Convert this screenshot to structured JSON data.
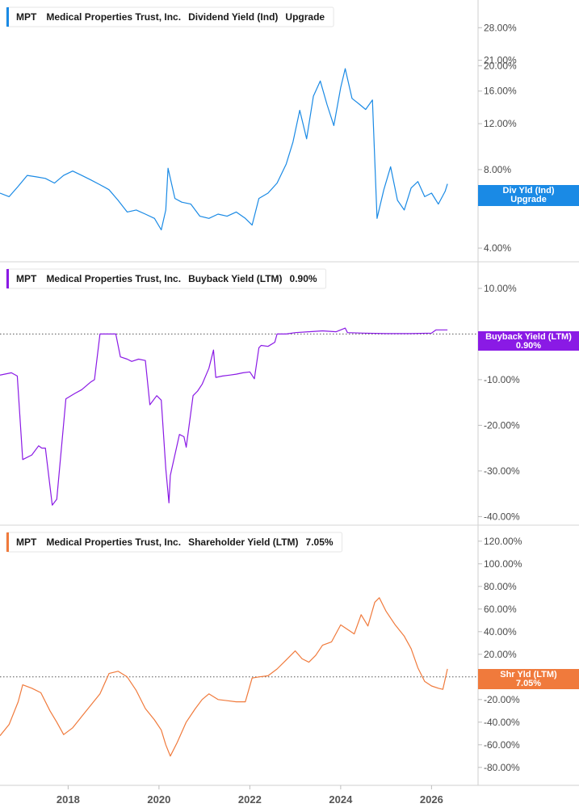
{
  "chart_data": [
    {
      "type": "line",
      "ticker": "MPT",
      "company": "Medical Properties Trust, Inc.",
      "metric": "Dividend Yield (Ind)",
      "metric_value": "Upgrade",
      "tag_label": "Div Yld (Ind)",
      "tag_value": "Upgrade",
      "color": "#1a8ae5",
      "scale": "log",
      "ylim": [
        3.7,
        31
      ],
      "y_ticks": [
        "28.00%",
        "21.00%",
        "20.00%",
        "16.00%",
        "12.00%",
        "8.00%",
        "6.00%",
        "4.00%"
      ],
      "y_tick_values": [
        28,
        21,
        20,
        16,
        12,
        8,
        6,
        4
      ],
      "current_value": 7.05,
      "x": [
        2016.5,
        2016.7,
        2016.9,
        2017.1,
        2017.3,
        2017.5,
        2017.7,
        2017.9,
        2018.1,
        2018.3,
        2018.5,
        2018.7,
        2018.9,
        2019.1,
        2019.3,
        2019.5,
        2019.7,
        2019.9,
        2020.05,
        2020.15,
        2020.2,
        2020.35,
        2020.5,
        2020.7,
        2020.9,
        2021.1,
        2021.3,
        2021.5,
        2021.7,
        2021.9,
        2022.05,
        2022.2,
        2022.4,
        2022.6,
        2022.8,
        2022.95,
        2023.1,
        2023.25,
        2023.4,
        2023.55,
        2023.7,
        2023.85,
        2024.0,
        2024.1,
        2024.25,
        2024.4,
        2024.55,
        2024.7,
        2024.8,
        2024.95,
        2025.1,
        2025.25,
        2025.4,
        2025.55,
        2025.7,
        2025.85,
        2026.0,
        2026.15,
        2026.3,
        2026.35
      ],
      "values": [
        6.5,
        6.3,
        6.9,
        7.6,
        7.5,
        7.4,
        7.1,
        7.6,
        7.9,
        7.6,
        7.3,
        7.0,
        6.7,
        6.1,
        5.5,
        5.6,
        5.4,
        5.2,
        4.7,
        5.6,
        8.1,
        6.2,
        6.0,
        5.9,
        5.3,
        5.2,
        5.4,
        5.3,
        5.5,
        5.2,
        4.9,
        6.2,
        6.5,
        7.1,
        8.4,
        10.2,
        13.5,
        10.5,
        15.3,
        17.5,
        14.2,
        11.8,
        16.5,
        19.5,
        15.0,
        14.3,
        13.6,
        14.8,
        5.2,
        6.7,
        8.2,
        6.1,
        5.6,
        6.8,
        7.2,
        6.3,
        6.5,
        5.9,
        6.6,
        7.05
      ]
    },
    {
      "type": "line",
      "ticker": "MPT",
      "company": "Medical Properties Trust, Inc.",
      "metric": "Buyback Yield (LTM)",
      "metric_value": "0.90%",
      "tag_label": "Buyback Yield (LTM)",
      "tag_value": "0.90%",
      "color": "#8a1ae5",
      "ylim": [
        -41,
        13
      ],
      "y_ticks": [
        "10.00%",
        "-10.00%",
        "-20.00%",
        "-30.00%",
        "-40.00%"
      ],
      "y_tick_values": [
        10,
        -10,
        -20,
        -30,
        -40
      ],
      "current_value": 0.9,
      "x": [
        2016.5,
        2016.75,
        2016.88,
        2017.0,
        2017.2,
        2017.35,
        2017.42,
        2017.5,
        2017.65,
        2017.75,
        2017.95,
        2018.15,
        2018.3,
        2018.5,
        2018.58,
        2018.7,
        2018.95,
        2019.05,
        2019.15,
        2019.3,
        2019.4,
        2019.55,
        2019.7,
        2019.8,
        2019.95,
        2020.05,
        2020.15,
        2020.22,
        2020.25,
        2020.45,
        2020.55,
        2020.6,
        2020.75,
        2020.85,
        2020.95,
        2021.1,
        2021.2,
        2021.25,
        2021.4,
        2021.55,
        2021.7,
        2021.85,
        2022.0,
        2022.1,
        2022.2,
        2022.25,
        2022.4,
        2022.55,
        2022.6,
        2022.8,
        2023.0,
        2023.3,
        2023.6,
        2023.9,
        2024.1,
        2024.15,
        2024.5,
        2025.0,
        2025.5,
        2026.0,
        2026.1,
        2026.35
      ],
      "values": [
        -9.0,
        -8.5,
        -9.2,
        -27.5,
        -26.5,
        -24.5,
        -25.0,
        -25.0,
        -37.5,
        -36.2,
        -14.2,
        -13.0,
        -12.2,
        -10.5,
        -10.0,
        0.0,
        0.0,
        0.0,
        -5.0,
        -5.5,
        -6.0,
        -5.5,
        -5.8,
        -15.5,
        -13.5,
        -14.5,
        -29.5,
        -37.0,
        -31.0,
        -22.0,
        -22.5,
        -24.8,
        -13.5,
        -12.5,
        -11.0,
        -7.5,
        -3.5,
        -9.5,
        -9.2,
        -9.0,
        -8.8,
        -8.5,
        -8.3,
        -9.8,
        -3.0,
        -2.5,
        -2.7,
        -1.8,
        0.0,
        0.0,
        0.3,
        0.5,
        0.7,
        0.5,
        1.3,
        0.3,
        0.2,
        0.1,
        0.1,
        0.2,
        0.9,
        0.9
      ]
    },
    {
      "type": "line",
      "ticker": "MPT",
      "company": "Medical Properties Trust, Inc.",
      "metric": "Shareholder Yield (LTM)",
      "metric_value": "7.05%",
      "tag_label": "Shr Yld (LTM)",
      "tag_value": "7.05%",
      "color": "#f07a3c",
      "ylim": [
        -93,
        127
      ],
      "y_ticks": [
        "120.00%",
        "100.00%",
        "80.00%",
        "60.00%",
        "40.00%",
        "20.00%",
        "0.00%",
        "-20.00%",
        "-40.00%",
        "-60.00%",
        "-80.00%"
      ],
      "y_tick_values": [
        120,
        100,
        80,
        60,
        40,
        20,
        0,
        -20,
        -40,
        -60,
        -80
      ],
      "current_value": 7.05,
      "x": [
        2016.5,
        2016.7,
        2016.9,
        2017.0,
        2017.2,
        2017.4,
        2017.6,
        2017.75,
        2017.9,
        2018.1,
        2018.3,
        2018.5,
        2018.7,
        2018.9,
        2019.1,
        2019.3,
        2019.5,
        2019.7,
        2019.9,
        2020.05,
        2020.15,
        2020.25,
        2020.4,
        2020.6,
        2020.8,
        2020.95,
        2021.1,
        2021.3,
        2021.5,
        2021.7,
        2021.9,
        2022.05,
        2022.2,
        2022.4,
        2022.6,
        2022.8,
        2023.0,
        2023.15,
        2023.3,
        2023.45,
        2023.6,
        2023.8,
        2024.0,
        2024.15,
        2024.3,
        2024.45,
        2024.6,
        2024.75,
        2024.85,
        2025.0,
        2025.2,
        2025.4,
        2025.55,
        2025.7,
        2025.85,
        2026.0,
        2026.15,
        2026.25,
        2026.35
      ],
      "values": [
        -52,
        -42,
        -22,
        -7,
        -10,
        -14,
        -30,
        -40,
        -51,
        -45,
        -35,
        -25,
        -15,
        3,
        5,
        0,
        -12,
        -28,
        -38,
        -47,
        -60,
        -70,
        -58,
        -40,
        -28,
        -20,
        -15,
        -20,
        -21,
        -22,
        -22,
        -1,
        0,
        1,
        7,
        15,
        23,
        16,
        13,
        19,
        28,
        31,
        46,
        42,
        38,
        55,
        45,
        66,
        70,
        58,
        46,
        36,
        25,
        8,
        -4,
        -8,
        -10,
        -11,
        7.05
      ]
    }
  ],
  "x_axis": {
    "ticks": [
      2018,
      2020,
      2022,
      2024,
      2026
    ],
    "tick_labels": [
      "2018",
      "2020",
      "2022",
      "2024",
      "2026"
    ],
    "range": [
      2016.5,
      2026.9
    ]
  }
}
